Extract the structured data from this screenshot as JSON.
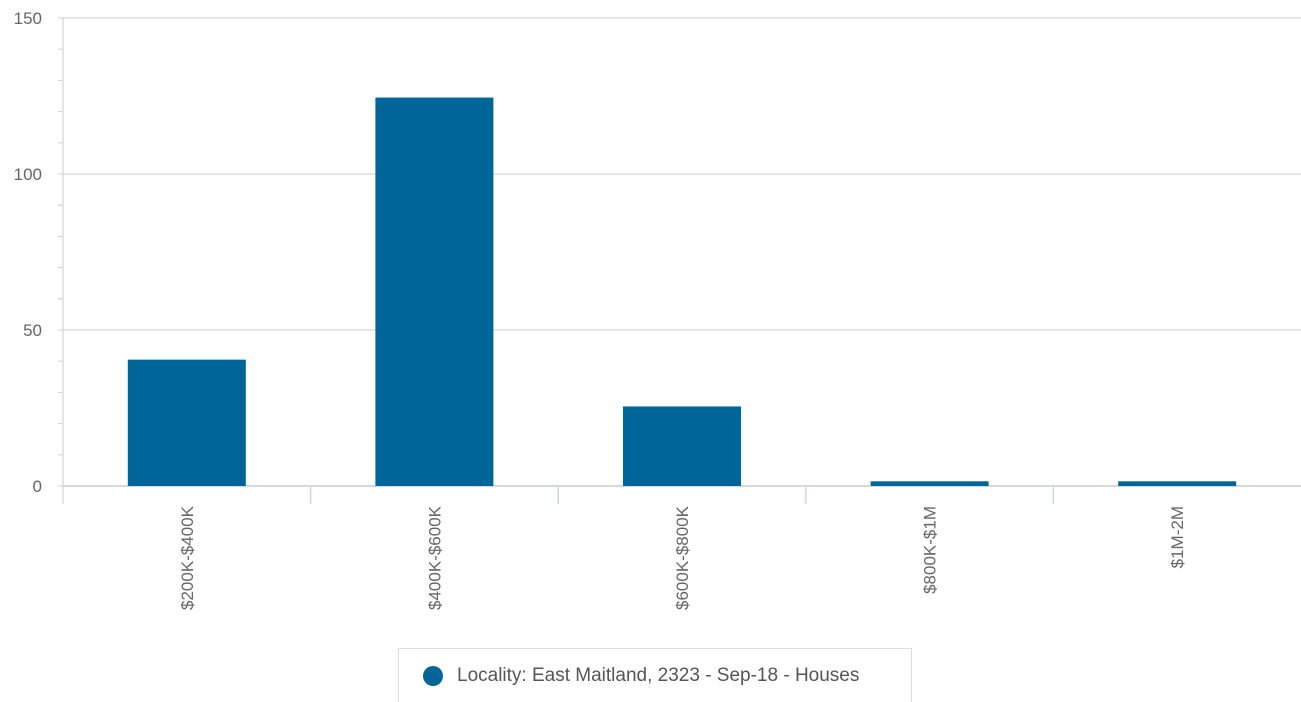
{
  "chart_data": {
    "type": "bar",
    "categories": [
      "$200K-$400K",
      "$400K-$600K",
      "$600K-$800K",
      "$800K-$1M",
      "$1M-2M"
    ],
    "series": [
      {
        "name": "Locality: East Maitland, 2323 - Sep-18 - Houses",
        "values": [
          40.5,
          124.5,
          25.5,
          1.5,
          1.5
        ]
      }
    ],
    "ylim": [
      0,
      150
    ],
    "yticks": [
      "0",
      "50",
      "100",
      "150"
    ],
    "grid": true,
    "legend_position": "bottom-center",
    "bar_color": "#006699"
  }
}
